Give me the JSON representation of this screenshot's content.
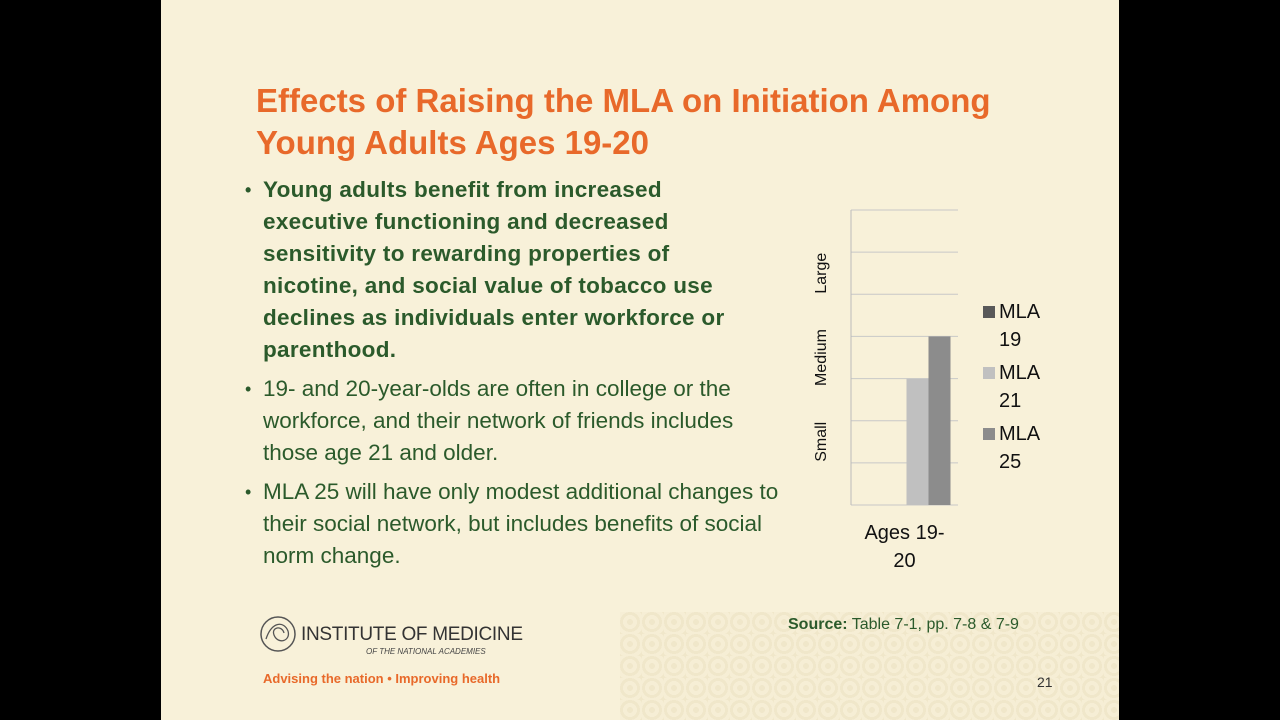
{
  "title": "Effects of Raising the MLA on Initiation Among Young Adults Ages 19-20",
  "bullets": [
    " Young adults benefit from increased executive functioning and decreased sensitivity to rewarding properties of nicotine, and social value of tobacco use declines as individuals enter workforce or parenthood.",
    "19- and 20-year-olds are often in college or the workforce, and their network of friends includes those age 21 and older.",
    "MLA 25 will have only modest additional changes to their social network, but includes benefits of social norm change."
  ],
  "source": {
    "label": "Source:",
    "text": "Table 7-1, pp. 7-8 & 7-9"
  },
  "logo": {
    "name": "INSTITUTE OF MEDICINE",
    "subname": "OF THE NATIONAL ACADEMIES",
    "tagline": "Advising the nation • Improving health"
  },
  "page_number": 21,
  "chart_data": {
    "type": "bar",
    "categories": [
      "Ages 19-20"
    ],
    "series": [
      {
        "name": "MLA 19",
        "color": "#595959",
        "values": [
          0
        ]
      },
      {
        "name": "MLA 21",
        "color": "#c0c0c0",
        "values": [
          3
        ]
      },
      {
        "name": "MLA 25",
        "color": "#8c8c8c",
        "values": [
          4
        ]
      }
    ],
    "ylim": [
      0,
      7
    ],
    "yticks": [
      {
        "value": 1.5,
        "label": "Small"
      },
      {
        "value": 3.5,
        "label": "Medium"
      },
      {
        "value": 5.5,
        "label": "Large"
      }
    ],
    "ygrid": [
      0,
      1,
      2,
      3,
      4,
      5,
      6,
      7
    ],
    "grid": true,
    "legend": "right"
  }
}
